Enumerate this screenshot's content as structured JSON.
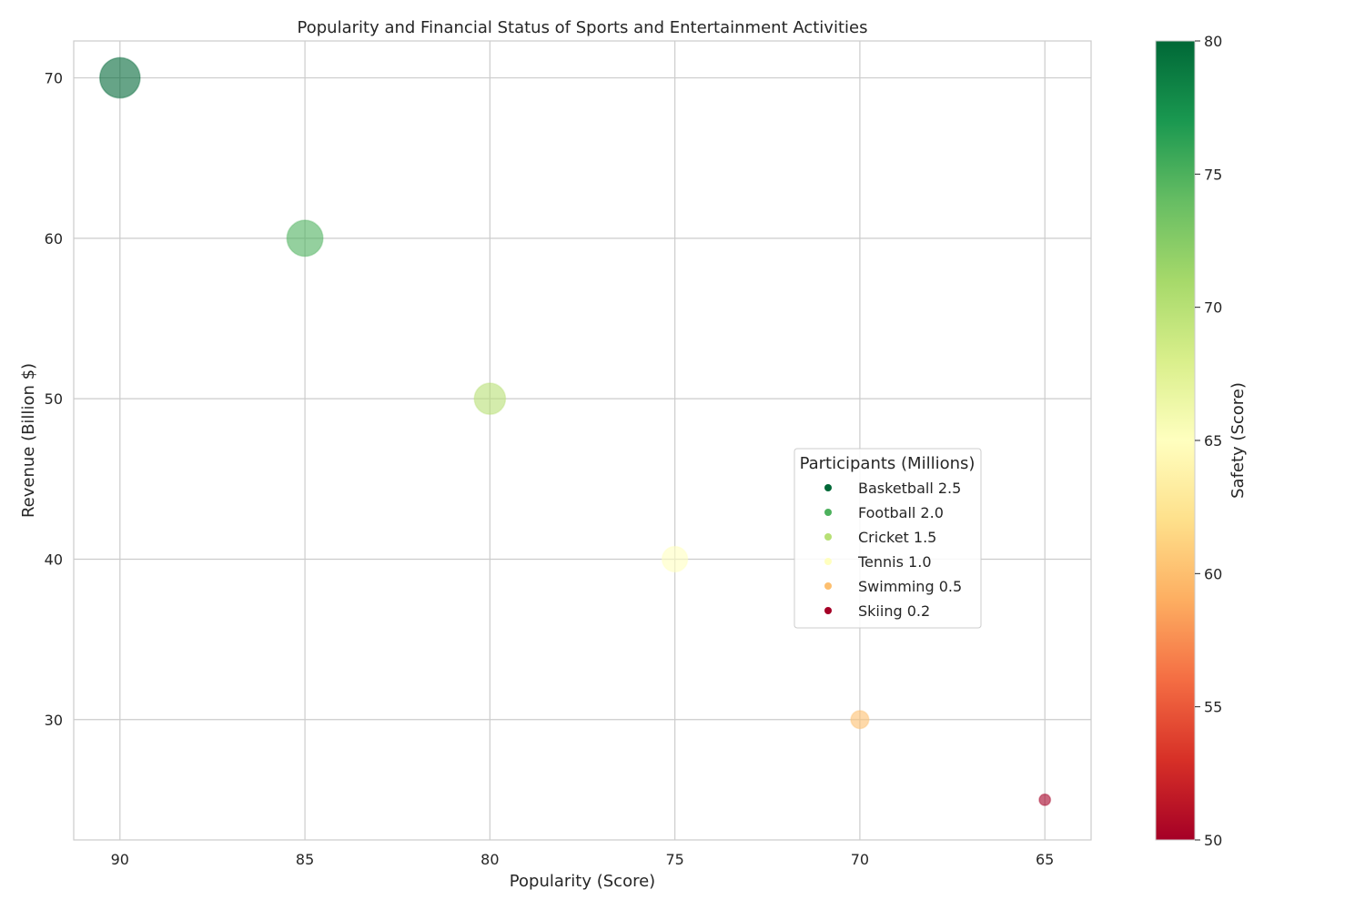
{
  "chart_data": {
    "type": "scatter",
    "title": "Popularity and Financial Status of Sports and Entertainment Activities",
    "xlabel": "Popularity (Score)",
    "ylabel": "Revenue (Billion $)",
    "xlim": [
      91.25,
      63.75
    ],
    "ylim": [
      22.5,
      72.3
    ],
    "x_inverted": true,
    "xticks": [
      90,
      85,
      80,
      75,
      70,
      65
    ],
    "yticks": [
      30,
      40,
      50,
      60,
      70
    ],
    "grid": true,
    "legend": {
      "title": "Participants (Millions)",
      "placement": "center-right"
    },
    "colorbar": {
      "label": "Safety (Score)",
      "min": 50,
      "max": 80,
      "ticks": [
        50,
        55,
        60,
        65,
        70,
        75,
        80
      ],
      "colormap": "RdYlGn"
    },
    "points": [
      {
        "label": "Basketball",
        "participants_label": "2.5",
        "popularity": 90,
        "revenue": 70,
        "participants": 2.5,
        "safety": 80
      },
      {
        "label": "Football",
        "participants_label": "2.0",
        "popularity": 85,
        "revenue": 60,
        "participants": 2.0,
        "safety": 75
      },
      {
        "label": "Cricket",
        "participants_label": "1.5",
        "popularity": 80,
        "revenue": 50,
        "participants": 1.5,
        "safety": 70
      },
      {
        "label": "Tennis",
        "participants_label": "1.0",
        "popularity": 75,
        "revenue": 40,
        "participants": 1.0,
        "safety": 65
      },
      {
        "label": "Swimming",
        "participants_label": "0.5",
        "popularity": 70,
        "revenue": 30,
        "participants": 0.5,
        "safety": 60
      },
      {
        "label": "Skiing",
        "participants_label": "0.2",
        "popularity": 65,
        "revenue": 25,
        "participants": 0.2,
        "safety": 50
      }
    ]
  }
}
